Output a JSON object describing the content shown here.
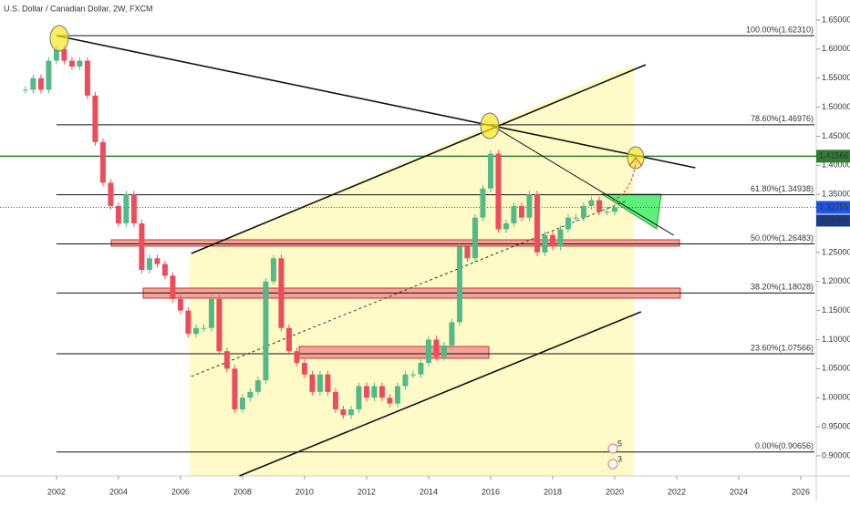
{
  "chart_data": {
    "type": "candlestick",
    "title": "U.S. Dollar / Canadian Dollar, 2W, FXCM",
    "x": [
      2001.0,
      2001.25,
      2001.5,
      2001.75,
      2002.0,
      2002.25,
      2002.5,
      2002.75,
      2003.0,
      2003.25,
      2003.5,
      2003.75,
      2004.0,
      2004.25,
      2004.5,
      2004.75,
      2005.0,
      2005.25,
      2005.5,
      2005.75,
      2006.0,
      2006.25,
      2006.5,
      2006.75,
      2007.0,
      2007.25,
      2007.5,
      2007.75,
      2008.0,
      2008.25,
      2008.5,
      2008.75,
      2009.0,
      2009.25,
      2009.5,
      2009.75,
      2010.0,
      2010.25,
      2010.5,
      2010.75,
      2011.0,
      2011.25,
      2011.5,
      2011.75,
      2012.0,
      2012.25,
      2012.5,
      2012.75,
      2013.0,
      2013.25,
      2013.5,
      2013.75,
      2014.0,
      2014.25,
      2014.5,
      2014.75,
      2015.0,
      2015.25,
      2015.5,
      2015.75,
      2016.0,
      2016.25,
      2016.5,
      2016.75,
      2017.0,
      2017.25,
      2017.5,
      2017.75,
      2018.0,
      2018.25,
      2018.5,
      2018.75,
      2019.0,
      2019.25,
      2019.5,
      2019.75,
      2020.0
    ],
    "series": [
      {
        "name": "USDCAD",
        "up_color": "#53b987",
        "down_color": "#eb4d5c",
        "values": [
          1.53,
          1.55,
          1.53,
          1.58,
          1.6,
          1.58,
          1.57,
          1.58,
          1.52,
          1.44,
          1.37,
          1.33,
          1.3,
          1.35,
          1.3,
          1.22,
          1.24,
          1.23,
          1.21,
          1.17,
          1.15,
          1.11,
          1.12,
          1.12,
          1.17,
          1.08,
          1.05,
          0.98,
          1.0,
          1.01,
          1.03,
          1.2,
          1.24,
          1.12,
          1.08,
          1.06,
          1.04,
          1.01,
          1.04,
          1.01,
          0.98,
          0.97,
          0.98,
          1.02,
          1.0,
          1.02,
          1.0,
          0.99,
          1.02,
          1.04,
          1.04,
          1.06,
          1.1,
          1.07,
          1.09,
          1.13,
          1.26,
          1.24,
          1.31,
          1.36,
          1.42,
          1.29,
          1.3,
          1.33,
          1.31,
          1.35,
          1.25,
          1.28,
          1.26,
          1.29,
          1.31,
          1.31,
          1.33,
          1.34,
          1.32,
          1.32,
          1.3275
        ]
      }
    ],
    "xlim": [
      2000.18,
      2026.5
    ],
    "ylim": [
      0.8654,
      1.6845
    ],
    "xticks": [
      2002,
      2004,
      2006,
      2008,
      2010,
      2012,
      2014,
      2016,
      2018,
      2020,
      2022,
      2024,
      2026
    ],
    "yticks": [
      {
        "value": 0.9,
        "label": "0.90000"
      },
      {
        "value": 0.95,
        "label": "0.95000"
      },
      {
        "value": 1.0,
        "label": "1.00000"
      },
      {
        "value": 1.05,
        "label": "1.05000"
      },
      {
        "value": 1.1,
        "label": "1.10000"
      },
      {
        "value": 1.15,
        "label": "1.15000"
      },
      {
        "value": 1.2,
        "label": "1.20000"
      },
      {
        "value": 1.25,
        "label": "1.25000"
      },
      {
        "value": 1.3,
        "label": "1.30000"
      },
      {
        "value": 1.35,
        "label": "1.35000"
      },
      {
        "value": 1.4,
        "label": "1.40000"
      },
      {
        "value": 1.45,
        "label": "1.45000"
      },
      {
        "value": 1.5,
        "label": "1.50000"
      },
      {
        "value": 1.55,
        "label": "1.55000"
      },
      {
        "value": 1.6,
        "label": "1.60000"
      },
      {
        "value": 1.65,
        "label": "1.65000"
      }
    ],
    "fib_levels": [
      {
        "value": 1.6231,
        "label": "100.00%(1.62310)"
      },
      {
        "value": 1.46976,
        "label": "78.60%(1.46976)"
      },
      {
        "value": 1.34938,
        "label": "61.80%(1.34938)"
      },
      {
        "value": 1.26483,
        "label": "50.00%(1.26483)"
      },
      {
        "value": 1.18028,
        "label": "38.20%(1.18028)"
      },
      {
        "value": 1.07566,
        "label": "23.60%(1.07566)"
      },
      {
        "value": 0.90656,
        "label": "0.00%(0.90656)"
      }
    ],
    "resistance": 1.41566,
    "current_price": 1.32755,
    "countdown": "10d 4h",
    "trendlines": [
      {
        "x": [
          2002.0,
          2022.6
        ],
        "y": [
          1.6231,
          1.3958
        ]
      },
      {
        "x": [
          2006.35,
          2021.0
        ],
        "y": [
          1.2483,
          1.5731
        ]
      },
      {
        "x": [
          2007.9,
          2020.85
        ],
        "y": [
          0.8654,
          1.1479
        ]
      },
      {
        "x": [
          2016.0,
          2021.9
        ],
        "y": [
          1.46976,
          1.2797
        ]
      }
    ],
    "midline": {
      "x": [
        2006.35,
        2020.4
      ],
      "y": [
        1.0365,
        1.3393
      ]
    },
    "events": [
      "5",
      "3"
    ]
  }
}
